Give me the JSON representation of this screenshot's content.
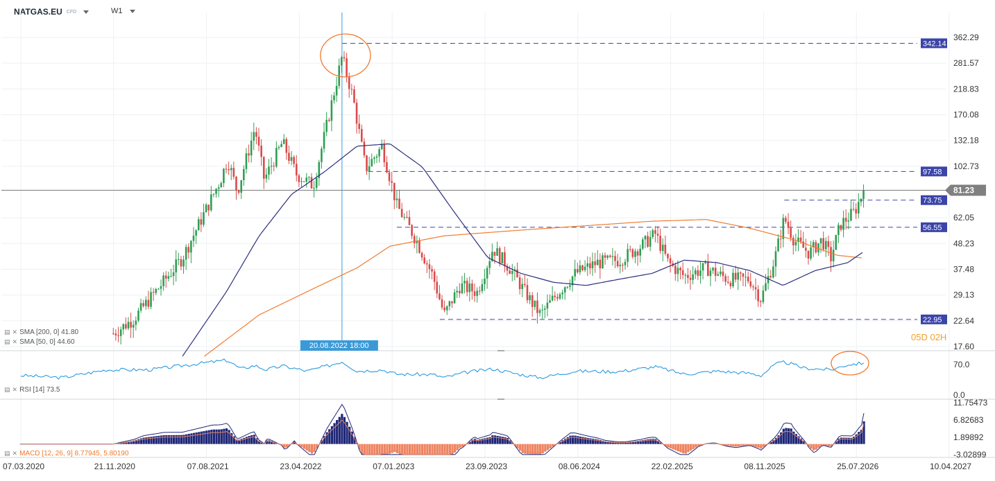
{
  "header": {
    "symbol": "NATGAS.EU",
    "symbol_type": "CFD",
    "timeframe": "W1"
  },
  "indicators": {
    "sma200": "SMA [200, 0] 41.80",
    "sma50": "SMA [50, 0] 44.60",
    "rsi": "RSI [14] 73.5",
    "macd": "MACD [12, 26, 9] 8.77945, 5.80190"
  },
  "countdown": "05D 02H",
  "colors": {
    "bull": "#2e9e52",
    "bear": "#d94a4a",
    "sma50": "#2b2d7c",
    "sma200": "#f07b2f",
    "rsi": "#2a9be0",
    "macd_pos": "#1f2777",
    "macd_neg": "#ef8460",
    "level_tag": "#3b44a8",
    "price_tag": "#808080",
    "crosshair": "#3a9ad9",
    "annotation": "#f07b2f"
  },
  "chart_data": {
    "type": "candlestick",
    "price_axis_labels": [
      "362.29",
      "281.57",
      "218.83",
      "170.08",
      "132.18",
      "102.73",
      "81.23",
      "62.05",
      "48.23",
      "37.48",
      "29.13",
      "22.64",
      "17.60"
    ],
    "price_axis_values": [
      362.29,
      281.57,
      218.83,
      170.08,
      132.18,
      102.73,
      81.23,
      62.05,
      48.23,
      37.48,
      29.13,
      22.64,
      17.6
    ],
    "price_scale": "log",
    "current_price": "81.23",
    "levels": [
      {
        "label": "342.14",
        "value": 342.14
      },
      {
        "label": "97.58",
        "value": 97.58
      },
      {
        "label": "73.75",
        "value": 73.75
      },
      {
        "label": "56.55",
        "value": 56.55
      },
      {
        "label": "22.95",
        "value": 22.95
      }
    ],
    "crosshair_label": "20.08.2022 18:00",
    "x_axis_labels": [
      "07.03.2020",
      "21.11.2020",
      "07.08.2021",
      "23.04.2022",
      "07.01.2023",
      "23.09.2023",
      "08.06.2024",
      "22.02.2025",
      "08.11.2025",
      "25.07.2026",
      "10.04.2027"
    ],
    "price_path": [
      [
        "2020-11-20",
        20
      ],
      [
        "2021-01-15",
        23
      ],
      [
        "2021-04-01",
        32
      ],
      [
        "2021-06-01",
        42
      ],
      [
        "2021-08-01",
        65
      ],
      [
        "2021-09-15",
        90
      ],
      [
        "2021-10-05",
        110
      ],
      [
        "2021-11-01",
        80
      ],
      [
        "2021-12-20",
        150
      ],
      [
        "2022-01-15",
        90
      ],
      [
        "2022-03-07",
        130
      ],
      [
        "2022-04-15",
        95
      ],
      [
        "2022-06-01",
        85
      ],
      [
        "2022-07-15",
        170
      ],
      [
        "2022-08-20",
        300
      ],
      [
        "2022-09-20",
        200
      ],
      [
        "2022-10-25",
        100
      ],
      [
        "2022-12-10",
        125
      ],
      [
        "2023-01-20",
        70
      ],
      [
        "2023-03-15",
        50
      ],
      [
        "2023-05-01",
        35
      ],
      [
        "2023-06-01",
        24
      ],
      [
        "2023-07-15",
        32
      ],
      [
        "2023-09-01",
        30
      ],
      [
        "2023-10-15",
        46
      ],
      [
        "2023-12-01",
        38
      ],
      [
        "2024-02-01",
        27
      ],
      [
        "2024-02-25",
        24
      ],
      [
        "2024-04-15",
        30
      ],
      [
        "2024-06-01",
        36
      ],
      [
        "2024-08-01",
        40
      ],
      [
        "2024-10-01",
        41
      ],
      [
        "2024-12-01",
        47
      ],
      [
        "2025-01-10",
        53
      ],
      [
        "2025-02-15",
        40
      ],
      [
        "2025-04-01",
        35
      ],
      [
        "2025-06-01",
        38
      ],
      [
        "2025-08-01",
        34
      ],
      [
        "2025-10-01",
        34
      ],
      [
        "2025-11-01",
        28
      ],
      [
        "2025-12-10",
        42
      ],
      [
        "2026-01-05",
        62
      ],
      [
        "2026-02-01",
        50
      ],
      [
        "2026-03-15",
        44
      ],
      [
        "2026-04-20",
        50
      ],
      [
        "2026-05-15",
        42
      ],
      [
        "2026-06-10",
        58
      ],
      [
        "2026-07-20",
        66
      ],
      [
        "2026-08-15",
        81
      ]
    ],
    "sma50_path": [
      [
        "2021-06-01",
        16
      ],
      [
        "2021-10-01",
        30
      ],
      [
        "2022-01-01",
        52
      ],
      [
        "2022-04-01",
        78
      ],
      [
        "2022-07-01",
        97
      ],
      [
        "2022-10-01",
        125
      ],
      [
        "2023-01-01",
        128
      ],
      [
        "2023-04-01",
        102
      ],
      [
        "2023-07-01",
        65
      ],
      [
        "2023-10-01",
        42
      ],
      [
        "2024-01-01",
        36
      ],
      [
        "2024-04-01",
        33
      ],
      [
        "2024-07-01",
        32
      ],
      [
        "2024-10-01",
        34
      ],
      [
        "2025-01-01",
        36
      ],
      [
        "2025-04-01",
        41
      ],
      [
        "2025-07-01",
        40
      ],
      [
        "2025-10-01",
        37
      ],
      [
        "2026-01-01",
        32
      ],
      [
        "2026-04-01",
        37
      ],
      [
        "2026-07-01",
        40
      ],
      [
        "2026-08-15",
        44.6
      ]
    ],
    "sma200_path": [
      [
        "2021-08-01",
        16
      ],
      [
        "2022-01-01",
        24
      ],
      [
        "2022-06-01",
        31
      ],
      [
        "2022-10-01",
        38
      ],
      [
        "2023-01-01",
        47
      ],
      [
        "2023-06-01",
        52
      ],
      [
        "2024-01-01",
        55
      ],
      [
        "2024-06-01",
        57
      ],
      [
        "2025-01-01",
        60
      ],
      [
        "2025-06-01",
        61
      ],
      [
        "2025-10-01",
        56
      ],
      [
        "2026-02-01",
        50
      ],
      [
        "2026-06-01",
        43
      ],
      [
        "2026-08-15",
        41.8
      ]
    ],
    "rsi": {
      "axis_labels": [
        "70.0",
        "0.0"
      ],
      "axis_values": [
        70,
        0
      ],
      "last": 73.5,
      "path": [
        [
          "2020-03-07",
          45
        ],
        [
          "2020-07-01",
          40
        ],
        [
          "2020-11-01",
          58
        ],
        [
          "2021-03-01",
          58
        ],
        [
          "2021-08-01",
          74
        ],
        [
          "2021-10-05",
          80
        ],
        [
          "2021-11-10",
          60
        ],
        [
          "2021-12-20",
          68
        ],
        [
          "2022-01-20",
          58
        ],
        [
          "2022-03-07",
          67
        ],
        [
          "2022-05-15",
          55
        ],
        [
          "2022-07-15",
          68
        ],
        [
          "2022-08-20",
          77
        ],
        [
          "2022-10-01",
          55
        ],
        [
          "2022-12-10",
          58
        ],
        [
          "2023-01-20",
          48
        ],
        [
          "2023-05-01",
          47
        ],
        [
          "2023-06-01",
          40
        ],
        [
          "2023-08-01",
          52
        ],
        [
          "2023-10-15",
          60
        ],
        [
          "2024-01-01",
          47
        ],
        [
          "2024-02-25",
          40
        ],
        [
          "2024-06-01",
          55
        ],
        [
          "2024-10-01",
          54
        ],
        [
          "2025-01-10",
          65
        ],
        [
          "2025-04-01",
          48
        ],
        [
          "2025-07-01",
          55
        ],
        [
          "2025-10-01",
          50
        ],
        [
          "2025-11-01",
          45
        ],
        [
          "2025-12-10",
          70
        ],
        [
          "2026-01-05",
          76
        ],
        [
          "2026-03-01",
          62
        ],
        [
          "2026-05-15",
          58
        ],
        [
          "2026-07-01",
          70
        ],
        [
          "2026-08-15",
          73.5
        ]
      ]
    },
    "macd": {
      "axis_labels": [
        "11.75473",
        "6.82683",
        "1.89892",
        "-3.02899"
      ],
      "axis_values": [
        11.75473,
        6.82683,
        1.89892,
        -3.02899
      ],
      "macd_line": 8.77945,
      "signal_line": 5.8019
    }
  }
}
